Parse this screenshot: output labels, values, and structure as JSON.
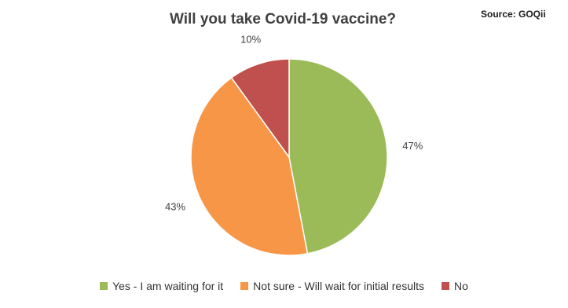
{
  "chart_data": {
    "type": "pie",
    "title": "Will you take Covid-19 vaccine?",
    "source": "Source: GOQii",
    "categories": [
      "Yes - I am waiting for it",
      "Not sure - Will wait for initial results",
      "No"
    ],
    "values": [
      47,
      43,
      10
    ],
    "labels": [
      "47%",
      "43%",
      "10%"
    ],
    "colors": [
      "#9bbb59",
      "#f79646",
      "#c0504d"
    ],
    "legend_position": "bottom"
  }
}
